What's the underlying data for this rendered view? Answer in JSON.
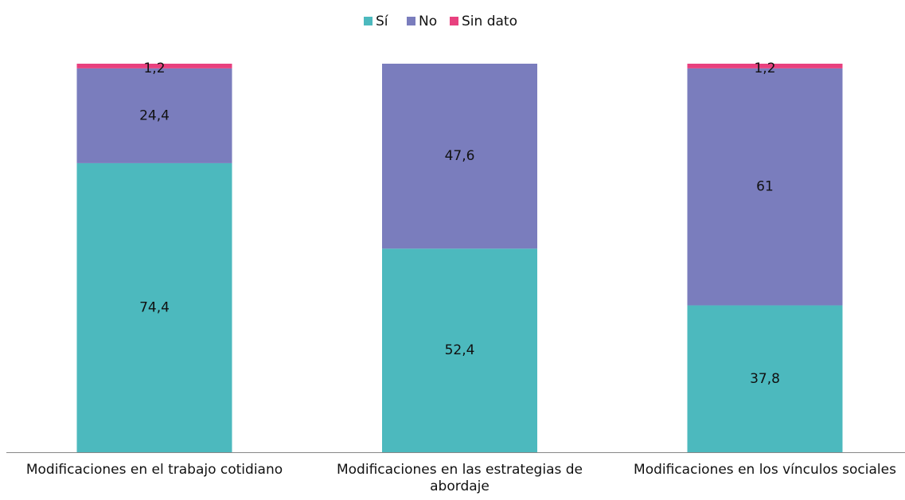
{
  "chart_data": {
    "type": "stacked_bar",
    "categories": [
      "Modificaciones en el trabajo cotidiano",
      "Modificaciones en las estrategias de abordaje",
      "Modificaciones en los vínculos sociales"
    ],
    "series": [
      {
        "name": "Sí",
        "color": "#4cb9be",
        "values": [
          74.4,
          52.4,
          37.8
        ],
        "value_labels": [
          "74,4",
          "52,4",
          "37,8"
        ]
      },
      {
        "name": "No",
        "color": "#7a7dbd",
        "values": [
          24.4,
          47.6,
          61
        ],
        "value_labels": [
          "24,4",
          "47,6",
          "61"
        ]
      },
      {
        "name": "Sin dato",
        "color": "#e8417f",
        "values": [
          1.2,
          0,
          1.2
        ],
        "value_labels": [
          "1,2",
          null,
          "1,2"
        ]
      }
    ],
    "ylim": [
      0,
      100
    ],
    "legend": "top"
  }
}
